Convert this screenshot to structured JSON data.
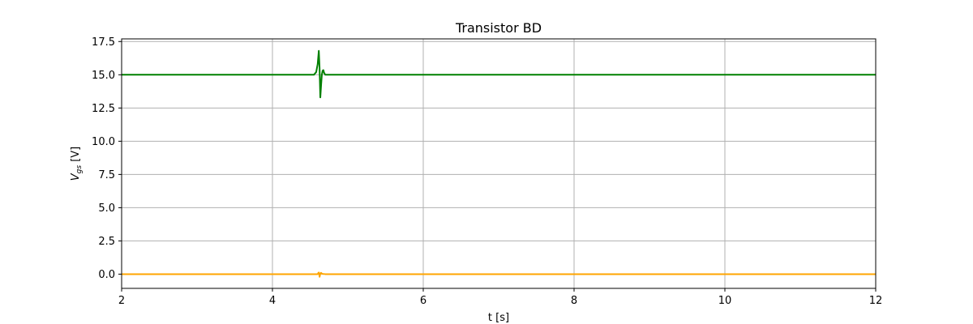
{
  "chart_data": {
    "type": "line",
    "title": "Transistor BD",
    "xlabel": "t [s]",
    "ylabel": {
      "main": "V",
      "sub": "gs",
      "unit": " [V]"
    },
    "xlim": [
      2,
      12
    ],
    "ylim": [
      -1.07,
      17.7
    ],
    "xticks": [
      2,
      4,
      6,
      8,
      10,
      12
    ],
    "xtick_labels": [
      "2",
      "4",
      "6",
      "8",
      "10",
      "12"
    ],
    "yticks": [
      0,
      2.5,
      5,
      7.5,
      10,
      12.5,
      15,
      17.5
    ],
    "ytick_labels": [
      "0.0",
      "2.5",
      "5.0",
      "7.5",
      "10.0",
      "12.5",
      "15.0",
      "17.5"
    ],
    "grid": true,
    "series": [
      {
        "color": "#008000",
        "x": [
          2.0,
          4.55,
          4.58,
          4.6,
          4.615,
          4.625,
          4.635,
          4.645,
          4.655,
          4.665,
          4.675,
          4.685,
          4.7,
          4.72,
          4.75,
          12.0
        ],
        "y": [
          15.0,
          15.0,
          15.2,
          15.8,
          16.8,
          15.5,
          13.3,
          14.2,
          15.0,
          15.3,
          15.35,
          15.15,
          15.0,
          15.0,
          15.0,
          15.0
        ]
      },
      {
        "color": "#ffa500",
        "x": [
          2.0,
          4.6,
          4.61,
          4.615,
          4.62,
          4.625,
          4.635,
          4.645,
          4.66,
          4.7,
          12.0
        ],
        "y": [
          0.0,
          0.0,
          0.1,
          0.12,
          0.0,
          -0.2,
          0.05,
          0.1,
          0.02,
          0.0,
          0.0
        ]
      }
    ]
  }
}
